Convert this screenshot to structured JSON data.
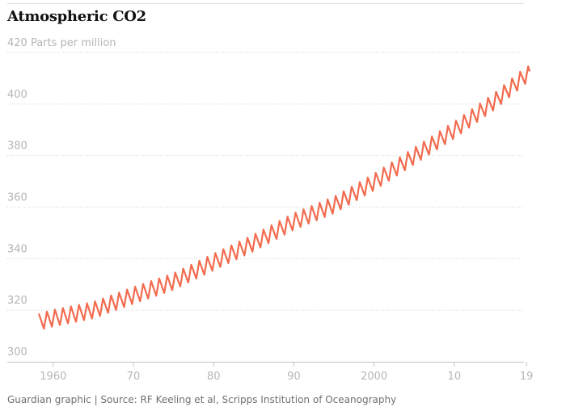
{
  "title": "Atmospheric CO2",
  "source": "Guardian graphic | Source: RF Keeling et al, Scripps Institution of Oceanography",
  "colors": {
    "line": "#f26b4f",
    "grid": "#d4d4d4",
    "tick_text": "#b5b5b5",
    "axis": "#c4c4c4"
  },
  "chart_data": {
    "type": "line",
    "title": "Atmospheric CO2",
    "ylabel": "Parts per million",
    "xlim": [
      1958,
      2019.5
    ],
    "ylim": [
      300,
      420
    ],
    "y_ticks": [
      {
        "value": 300,
        "label": "300"
      },
      {
        "value": 320,
        "label": "320"
      },
      {
        "value": 340,
        "label": "340"
      },
      {
        "value": 360,
        "label": "360"
      },
      {
        "value": 380,
        "label": "380"
      },
      {
        "value": 400,
        "label": "400"
      },
      {
        "value": 420,
        "label": "420 Parts per million"
      }
    ],
    "x_ticks": [
      {
        "value": 1960,
        "label": "1960"
      },
      {
        "value": 1970,
        "label": "70"
      },
      {
        "value": 1980,
        "label": "80"
      },
      {
        "value": 1990,
        "label": "90"
      },
      {
        "value": 2000,
        "label": "2000"
      },
      {
        "value": 2010,
        "label": "10"
      },
      {
        "value": 2019,
        "label": "19"
      }
    ],
    "grid": true,
    "seasonal_amplitude_ppm": 3.2,
    "series": [
      {
        "x": [
          1958,
          1960,
          1965,
          1970,
          1975,
          1980,
          1985,
          1990,
          1995,
          2000,
          2005,
          2010,
          2015,
          2019
        ],
        "values": [
          315.3,
          316.9,
          320.0,
          325.7,
          331.1,
          338.7,
          346.1,
          354.4,
          360.8,
          369.7,
          379.8,
          389.9,
          401.0,
          411.4
        ]
      }
    ]
  }
}
